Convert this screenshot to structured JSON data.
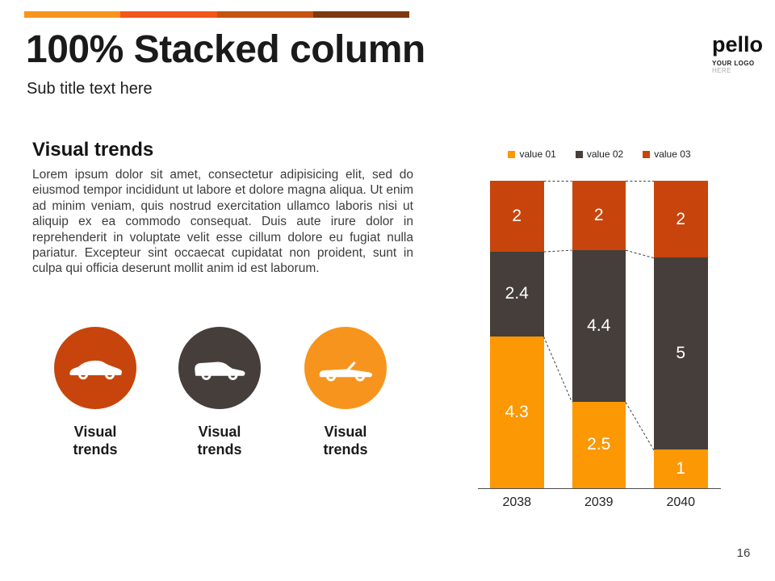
{
  "header": {
    "title": "100% Stacked column",
    "subtitle": "Sub title text here"
  },
  "accent_bar_colors": [
    "#F7941D",
    "#F2561B",
    "#C55312",
    "#7C3A10"
  ],
  "logo": {
    "name": "pello",
    "tagline_line1": "YOUR LOGO",
    "tagline_line2": "HERE"
  },
  "section": {
    "heading": "Visual trends",
    "body": "Lorem ipsum dolor sit amet, consectetur adipisicing elit, sed do eiusmod tempor incididunt ut labore et dolore magna aliqua. Ut enim ad minim veniam, quis nostrud exercitation ullamco laboris nisi ut aliquip ex ea commodo consequat. Duis aute irure dolor in reprehenderit in voluptate velit esse cillum dolore eu fugiat nulla pariatur. Excepteur sint occaecat cupidatat non proident, sunt in culpa qui officia deserunt mollit anim id est laborum."
  },
  "icon_cards": [
    {
      "label": "Visual trends",
      "icon": "sedan-car",
      "circle_color": "#C7450C"
    },
    {
      "label": "Visual trends",
      "icon": "suv-car",
      "circle_color": "#453E3B"
    },
    {
      "label": "Visual trends",
      "icon": "convertible-car",
      "circle_color": "#F7941D"
    }
  ],
  "chart_data": {
    "type": "bar",
    "subtype": "stacked_column_100",
    "categories": [
      "2038",
      "2039",
      "2040"
    ],
    "series": [
      {
        "name": "value 01",
        "color": "#FC9803",
        "values": [
          4.3,
          2.5,
          1
        ]
      },
      {
        "name": "value 02",
        "color": "#453E3B",
        "values": [
          2.4,
          4.4,
          5
        ]
      },
      {
        "name": "value 03",
        "color": "#C7450C",
        "values": [
          2,
          2,
          2
        ]
      }
    ],
    "legend_position": "top",
    "grid": false,
    "connector_lines": true,
    "data_labels": true,
    "data_label_color": "#FFFFFF",
    "ylim_percent": [
      0,
      100
    ]
  },
  "page_number": "16"
}
